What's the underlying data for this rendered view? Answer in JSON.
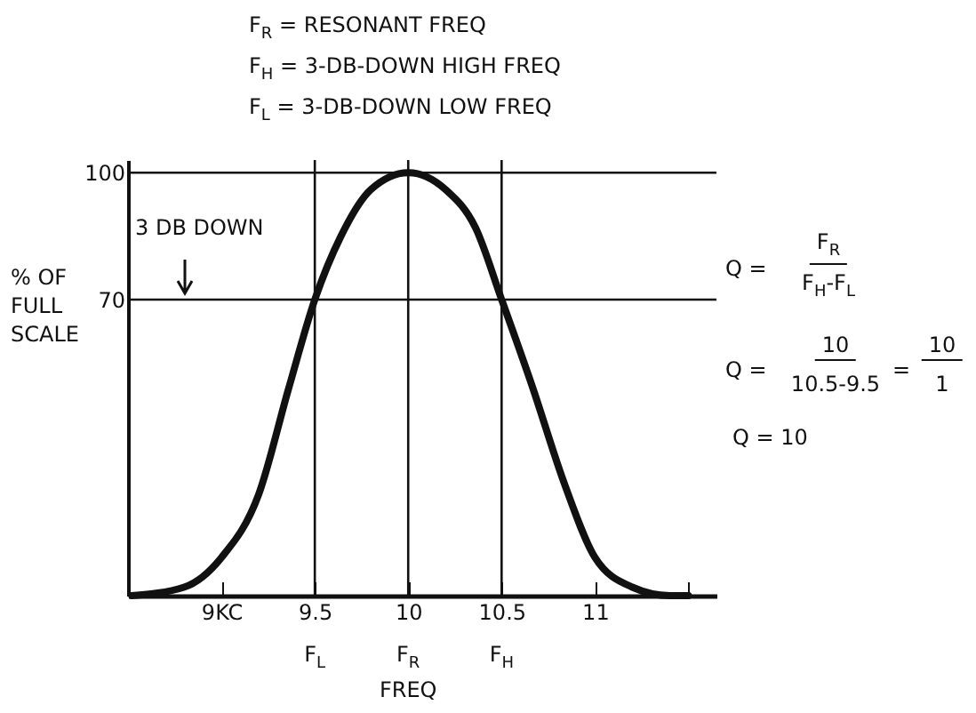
{
  "chart_data": {
    "type": "line",
    "xlabel": "FREQ",
    "ylabel": "% OF FULL SCALE",
    "x": [
      8.52,
      8.8,
      9.0,
      9.2,
      9.36,
      9.5,
      9.64,
      9.8,
      10.0,
      10.2,
      10.36,
      10.5,
      10.66,
      10.84,
      11.0,
      11.2,
      11.4,
      11.5
    ],
    "series": [
      {
        "color": "#111111",
        "values": [
          0,
          2,
          9,
          24,
          49,
          70,
          85,
          96,
          100,
          96,
          87,
          70,
          50,
          26,
          9,
          2,
          0,
          0
        ]
      }
    ],
    "xlim": [
      8.5,
      11.65
    ],
    "ylim": [
      0,
      103
    ],
    "xticks": [
      {
        "value": 9,
        "label": "9KC"
      },
      9.5,
      10,
      10.5,
      11,
      {
        "value": 11.5,
        "label": null
      }
    ],
    "yticks": [
      70,
      100
    ],
    "ref_lines": [
      {
        "axis": "y",
        "value": 100
      },
      {
        "axis": "y",
        "value": 70
      },
      {
        "axis": "x",
        "value": 9.5
      },
      {
        "axis": "x",
        "value": 10
      },
      {
        "axis": "x",
        "value": 10.5
      }
    ],
    "grid": false,
    "legend": false,
    "marker": "none",
    "line_style": "solid",
    "annotations": [
      "F$_{R}$ = RESONANT FREQ",
      "F$_{H}$ = 3-DB-DOWN HIGH FREQ",
      "F$_{L}$ = 3-DB-DOWN LOW FREQ",
      "Q =",
      "F$_{R}$",
      "F$_{H}$-F$_{L}$",
      "Q =",
      "10",
      "10.5-9.5",
      "=",
      "10",
      "1",
      "Q = 10",
      "3 DB DOWN",
      "F$_{L}$",
      "F$_{R}$",
      "F$_{H}$"
    ]
  }
}
